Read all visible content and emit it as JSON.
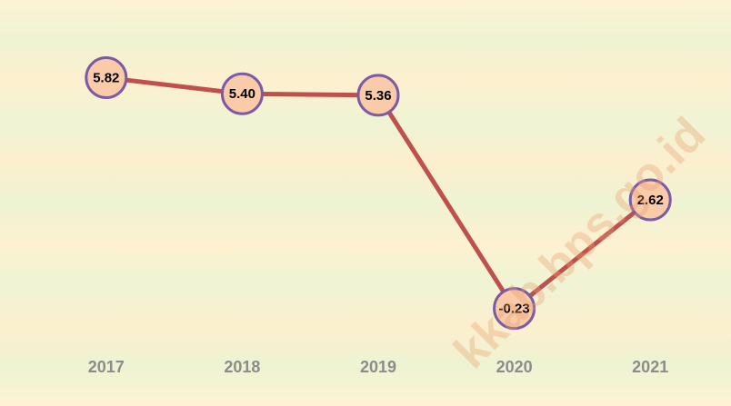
{
  "chart_data": {
    "type": "line",
    "categories": [
      "2017",
      "2018",
      "2019",
      "2020",
      "2021"
    ],
    "series": [
      {
        "color": "#c0504d",
        "values": [
          5.82,
          5.4,
          5.36,
          -0.23,
          2.62
        ],
        "value_labels": [
          "5.82",
          "5.40",
          "5.36",
          "-0.23",
          "2.62"
        ]
      }
    ],
    "ylim": [
      -1,
      7
    ],
    "watermark": "kkab.bps.go.id"
  }
}
